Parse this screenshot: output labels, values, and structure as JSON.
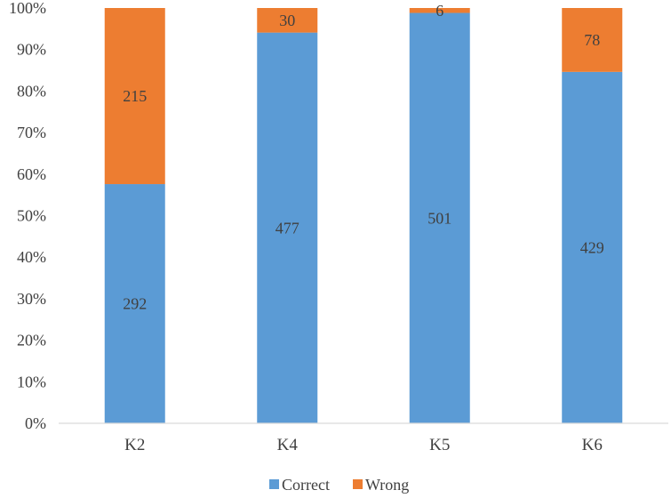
{
  "chart_data": {
    "type": "bar",
    "stacked": "percent",
    "categories": [
      "K2",
      "K4",
      "K5",
      "K6"
    ],
    "series": [
      {
        "name": "Correct",
        "values": [
          292,
          477,
          501,
          429
        ],
        "color": "#5B9BD5"
      },
      {
        "name": "Wrong",
        "values": [
          215,
          30,
          6,
          78
        ],
        "color": "#ED7D31"
      }
    ],
    "y_ticks": [
      "0%",
      "10%",
      "20%",
      "30%",
      "40%",
      "50%",
      "60%",
      "70%",
      "80%",
      "90%",
      "100%"
    ],
    "ylim": [
      0,
      100
    ],
    "grid": false,
    "legend": "bottom",
    "title": "",
    "xlabel": "",
    "ylabel": ""
  }
}
